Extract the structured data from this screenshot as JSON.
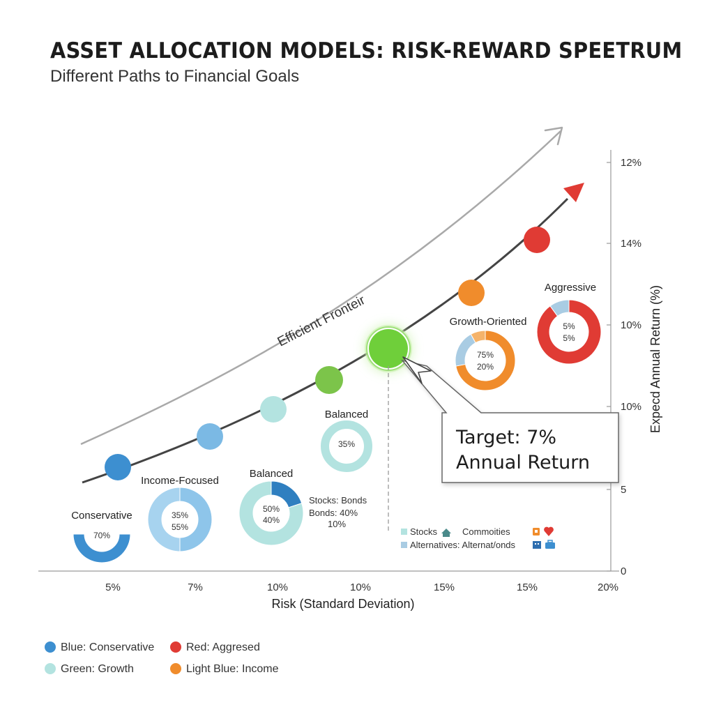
{
  "title": "ASSET ALLOCATION MODELS: RISK-REWARD SPEETRUM",
  "subtitle": "Different Paths to Financial Goals",
  "chart_data": {
    "type": "scatter",
    "xlabel": "Risk (Standard Deviation)",
    "ylabel": "Expecd Annual Return (%)",
    "x_tick_labels": [
      "5%",
      "7%",
      "10%",
      "10%",
      "15%",
      "15%",
      "20%"
    ],
    "y_tick_labels": [
      "12%",
      "14%",
      "10%",
      "10%",
      "5",
      "0"
    ],
    "points": [
      {
        "index": 1,
        "color": "#3d8fd0"
      },
      {
        "index": 2,
        "color": "#7bb9e4"
      },
      {
        "index": 3,
        "color": "#b3e3e0"
      },
      {
        "index": 4,
        "color": "#7cc44a"
      },
      {
        "index": 5,
        "color": "#6fcf3a",
        "highlight": true
      },
      {
        "index": 6,
        "color": "#f08c2c"
      },
      {
        "index": 7,
        "color": "#e03b34"
      }
    ],
    "frontier_label": "Efficient Fronteir",
    "target_callout": {
      "line1": "Target: 7%",
      "line2": "Annual Return"
    },
    "models": [
      {
        "label": "Conservative",
        "value_text": "70%",
        "text2": "",
        "slices": [
          {
            "percent": 100,
            "color": "#3d8fd0"
          }
        ]
      },
      {
        "label": "Income-Focused",
        "value_text": "35%",
        "text2": "55%",
        "slices": [
          {
            "percent": 50,
            "color": "#8ec5ea"
          },
          {
            "percent": 50,
            "color": "#a7d3ef"
          }
        ]
      },
      {
        "label": "Balanced",
        "value_text": "50%",
        "text2": "40%",
        "slices": [
          {
            "percent": 20,
            "color": "#2f7fc0"
          },
          {
            "percent": 80,
            "color": "#b3e3e0"
          }
        ]
      },
      {
        "label": "Balanced",
        "value_text": "35%",
        "text2": "",
        "slices": [
          {
            "percent": 100,
            "color": "#b3e3e0"
          }
        ]
      },
      {
        "label": "Growth-Oriented",
        "value_text": "75%",
        "text2": "20%",
        "slices": [
          {
            "percent": 72,
            "color": "#f08c2c"
          },
          {
            "percent": 20,
            "color": "#a9cce3"
          },
          {
            "percent": 8,
            "color": "#f5b36a"
          }
        ]
      },
      {
        "label": "Aggressive",
        "value_text": "5%",
        "text2": "5%",
        "slices": [
          {
            "percent": 90,
            "color": "#e03b34"
          },
          {
            "percent": 10,
            "color": "#a9cce3"
          }
        ]
      }
    ],
    "annotation_lines": [
      "Stocks: Bonds",
      "Bonds: 40%",
      "10%"
    ],
    "asset_legend": [
      {
        "text": "Stocks",
        "color": "#b3e3e0"
      },
      {
        "text": "Commoities",
        "color": ""
      },
      {
        "text": "Alternatives: Alternat/onds",
        "color": "#a9cce3"
      }
    ],
    "legend": [
      {
        "text": "Blue: Conservative",
        "color": "#3d8fd0"
      },
      {
        "text": "Red: Aggresed",
        "color": "#e03b34"
      },
      {
        "text": "Green: Growth",
        "color": "#b3e3e0"
      },
      {
        "text": "Light Blue: Income",
        "color": "#f08c2c"
      }
    ]
  }
}
